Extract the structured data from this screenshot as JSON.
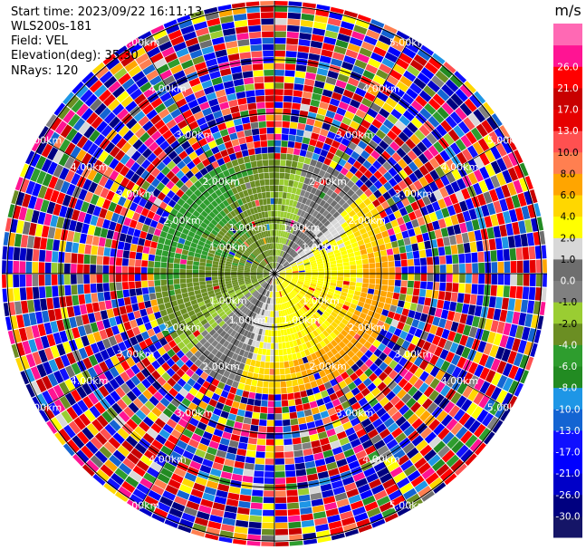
{
  "header": {
    "start_time": "Start time: 2023/09/22 16:11:13",
    "instrument": "WLS200s-181",
    "field": "Field: VEL",
    "elevation": "Elevation(deg): 35.30",
    "nrays": "NRays: 120"
  },
  "chart_data": {
    "type": "heatmap",
    "projection": "polar-ppi",
    "field": "VEL",
    "nrays": 120,
    "elevation_deg": 35.3,
    "range_rings_km": [
      1.0,
      2.0,
      3.0,
      4.0,
      5.0
    ],
    "range_ring_labels": [
      "1.00km",
      "2.00km",
      "3.00km",
      "4.00km",
      "5.00km"
    ],
    "max_range_km": 5.1,
    "colorbar": {
      "unit": "m/s",
      "bounds": [
        -30.0,
        -26.0,
        -21.0,
        -17.0,
        -13.0,
        -10.0,
        -8.0,
        -6.0,
        -4.0,
        -2.0,
        -1.0,
        0.0,
        1.0,
        2.0,
        4.0,
        6.0,
        8.0,
        10.0,
        13.0,
        17.0,
        21.0,
        26.0
      ],
      "tick_labels": [
        "-30.0",
        "-26.0",
        "-21.0",
        "-17.0",
        "-13.0",
        "-10.0",
        "-8.0",
        "-6.0",
        "-4.0",
        "-2.0",
        "-1.0",
        "0.0",
        "1.0",
        "2.0",
        "4.0",
        "6.0",
        "8.0",
        "10.0",
        "13.0",
        "17.0",
        "21.0",
        "26.0"
      ],
      "colors": [
        "#151567",
        "#000080",
        "#0000c8",
        "#0000ff",
        "#1010ff",
        "#1464d2",
        "#1e96e6",
        "#228b22",
        "#2e9d2e",
        "#6b8e23",
        "#9acd32",
        "#808080",
        "#6e6e6e",
        "#d8d8d8",
        "#ffff00",
        "#ffd700",
        "#ffa500",
        "#ff7f50",
        "#ff5050",
        "#e60000",
        "#c80000",
        "#ff0000",
        "#ff1493",
        "#ff69b4"
      ]
    },
    "annotation": "Near-range (< ~2.1 km): coherent wind pattern — approaching flow (green, ~-4 to -6 m/s) to the north-west, receding flow (yellow/orange, ~+2 to +6 m/s) to the south-east, gray near-zero band between. Beyond ~2.1 km: noise, all colours randomly mixed."
  }
}
